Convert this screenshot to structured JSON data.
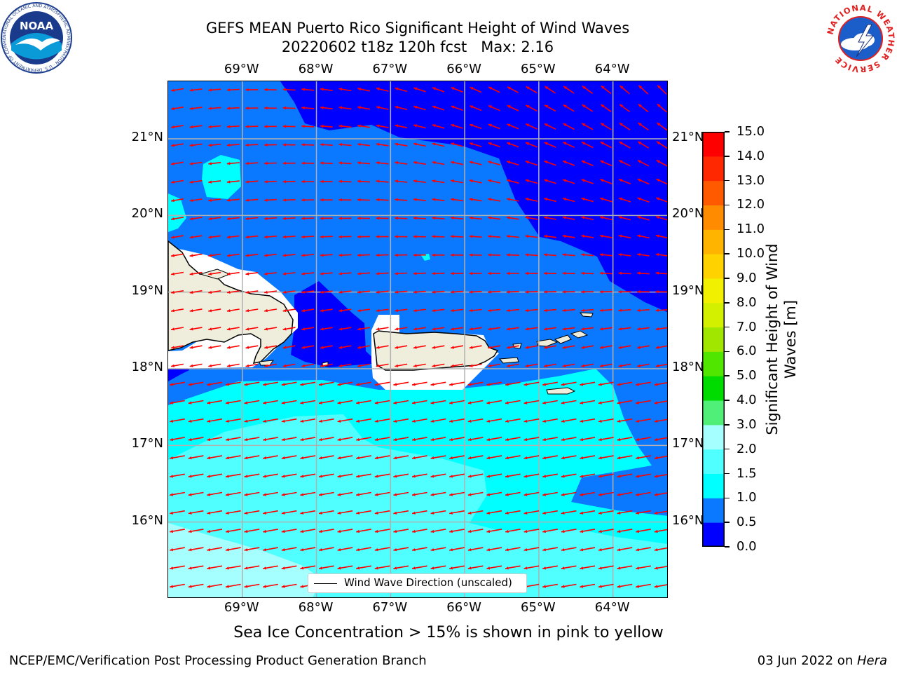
{
  "title": {
    "line1": "GEFS MEAN Puerto Rico Significant Height of Wind Waves",
    "line2": "20220602 t18z 120h fcst   Max: 2.16"
  },
  "logos": {
    "noaa": {
      "text": "NOAA",
      "ring_text": "NATIONAL OCEANIC AND ATMOSPHERIC ADMINISTRATION · U.S. DEPARTMENT OF COMMERCE"
    },
    "nws": {
      "ring_text": "NATIONAL WEATHER SERVICE"
    }
  },
  "map": {
    "lon_labels": [
      "69°W",
      "68°W",
      "67°W",
      "66°W",
      "65°W",
      "64°W"
    ],
    "lat_labels": [
      "21°N",
      "20°N",
      "19°N",
      "18°N",
      "17°N",
      "16°N"
    ],
    "lon_values": [
      -69,
      -68,
      -67,
      -66,
      -65,
      -64
    ],
    "lat_values": [
      21,
      20,
      19,
      18,
      17,
      16
    ],
    "extent": {
      "lon": [
        -70,
        -63.25
      ],
      "lat": [
        15,
        21.75
      ]
    },
    "grid": true,
    "colors": {
      "land": "#efeedd",
      "coast": "#000000",
      "grid": "#b0b0b0",
      "arrow": "#ff0000"
    },
    "legend_text": "Wind Wave Direction (unscaled)",
    "wind_direction_deg_to": 260
  },
  "colorbar": {
    "label": "Significant Height of Wind Waves [m]",
    "ticks": [
      "15.0",
      "14.0",
      "13.0",
      "12.0",
      "11.0",
      "10.0",
      "9.0",
      "8.0",
      "7.0",
      "6.0",
      "5.0",
      "4.0",
      "3.0",
      "2.0",
      "1.5",
      "1.0",
      "0.5",
      "0.0"
    ],
    "levels": [
      0,
      0.5,
      1,
      1.5,
      2,
      3,
      4,
      5,
      6,
      7,
      8,
      9,
      10,
      11,
      12,
      13,
      14,
      15
    ],
    "colors": [
      "#0000ff",
      "#0a78ff",
      "#00ffff",
      "#50ffff",
      "#a6ffff",
      "#50f078",
      "#00dc00",
      "#50e600",
      "#a0e600",
      "#d2f000",
      "#f0f000",
      "#ffd200",
      "#ffb400",
      "#ff8c00",
      "#ff5a00",
      "#ff2800",
      "#ff0000"
    ]
  },
  "ice_note": "Sea Ice Concentration > 15% is shown in pink to yellow",
  "footer": {
    "left": "NCEP/EMC/Verification Post Processing Product Generation Branch",
    "right_prefix": "03 Jun 2022 on ",
    "right_host": "Hera"
  }
}
